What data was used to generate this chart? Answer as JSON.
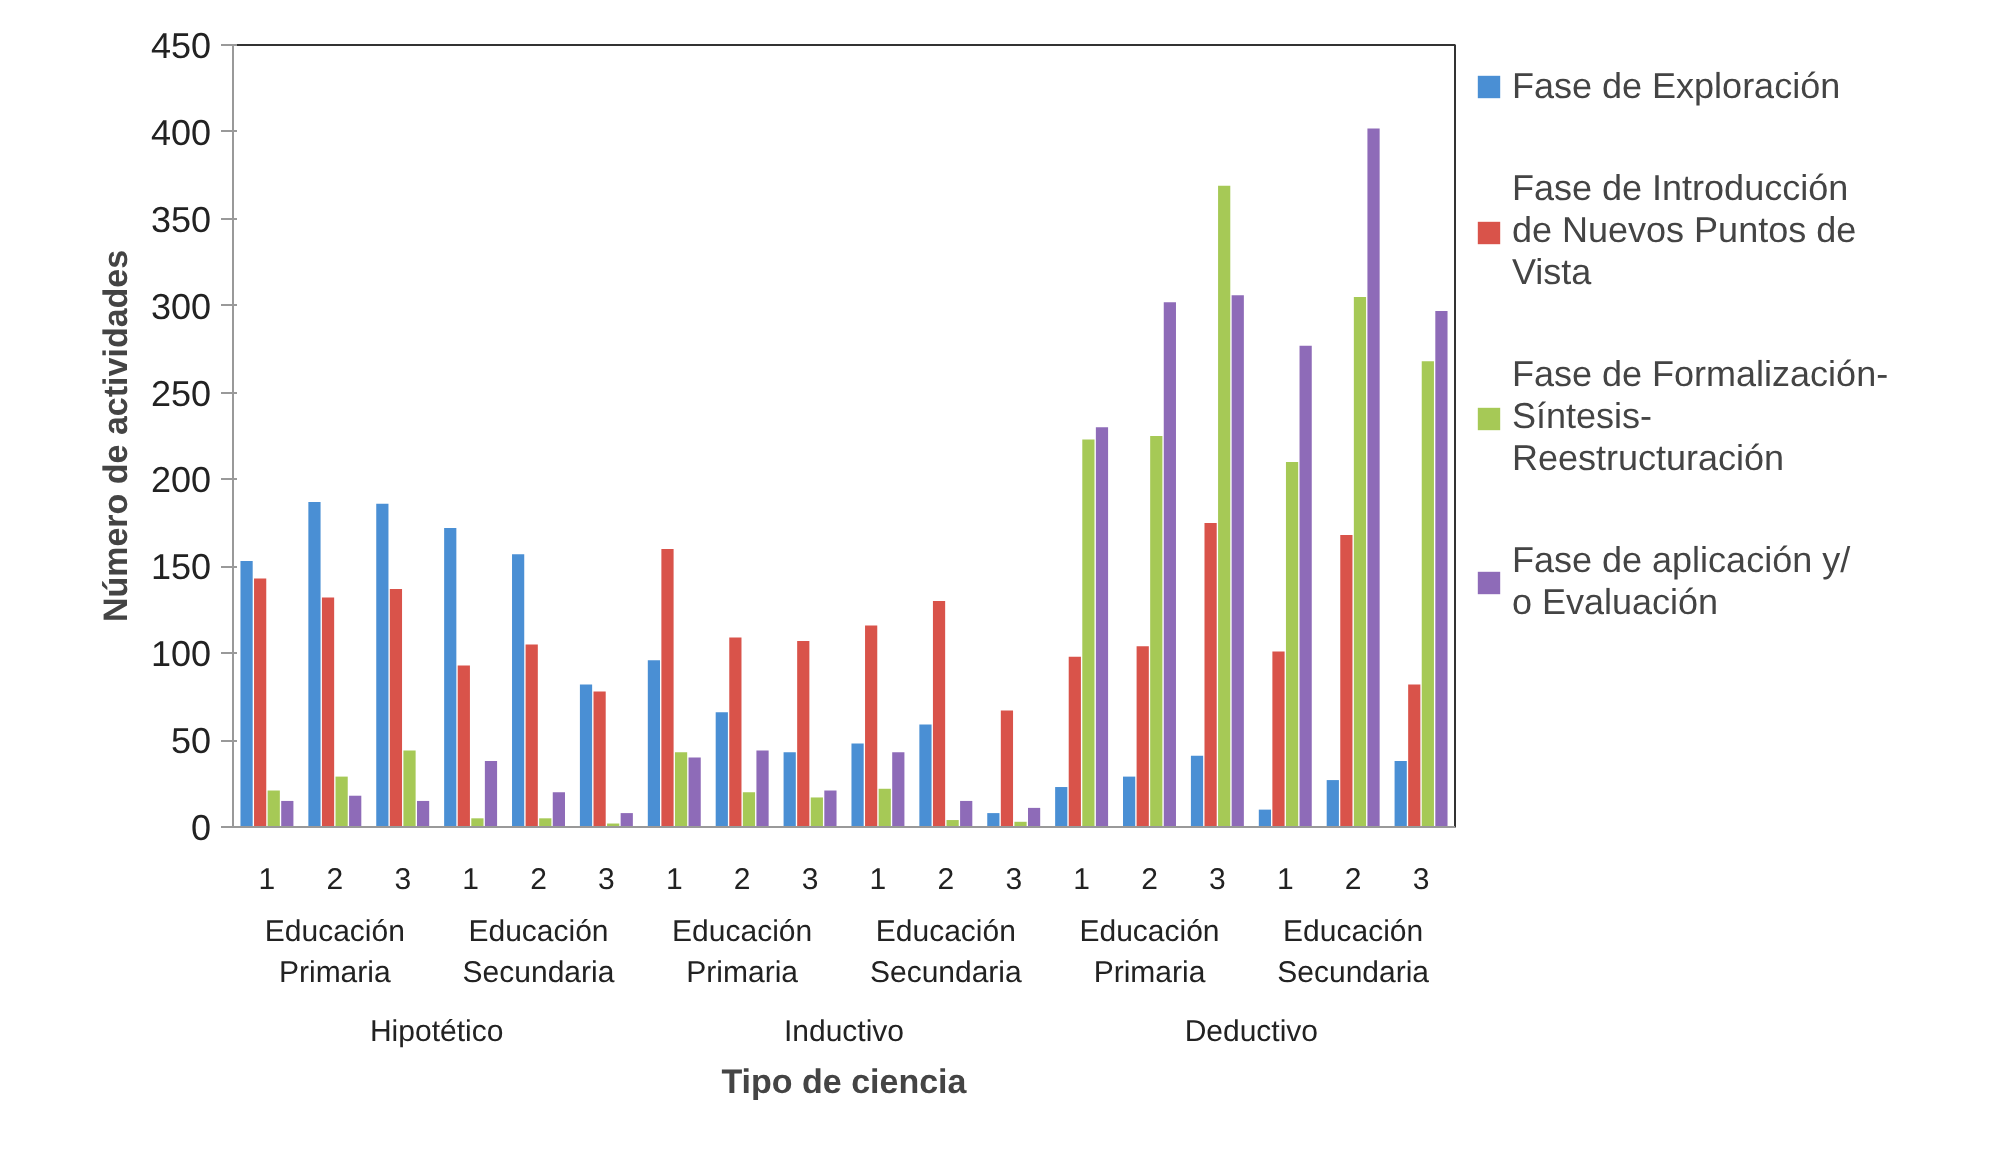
{
  "chart_data": {
    "type": "bar",
    "xlabel": "Tipo de ciencia",
    "ylabel": "Número de actividades",
    "categories": [
      "1",
      "2",
      "3",
      "1",
      "2",
      "3",
      "1",
      "2",
      "3",
      "1",
      "2",
      "3",
      "1",
      "2",
      "3",
      "1",
      "2",
      "3"
    ],
    "annotations": [
      "Educación Primaria",
      "Educación Secundaria",
      "Educación Primaria",
      "Educación Secundaria",
      "Educación Primaria",
      "Educación Secundaria",
      "Hipotético",
      "Inductivo",
      "Deductivo"
    ],
    "series": [
      {
        "name": "Fase de Exploración",
        "color": "#4a8fd4",
        "values": [
          153,
          187,
          186,
          172,
          157,
          82,
          96,
          66,
          43,
          48,
          59,
          8,
          23,
          29,
          41,
          10,
          27,
          38
        ]
      },
      {
        "name": "Fase de Introducción de Nuevos Puntos de Vista",
        "color": "#d9534a",
        "values": [
          143,
          132,
          137,
          93,
          105,
          78,
          160,
          109,
          107,
          116,
          130,
          67,
          98,
          104,
          175,
          101,
          168,
          82
        ]
      },
      {
        "name": "Fase de Formalización-Síntesis-Reestructuración",
        "color": "#a6c956",
        "values": [
          21,
          29,
          44,
          5,
          5,
          2,
          43,
          20,
          17,
          22,
          4,
          3,
          223,
          225,
          369,
          210,
          305,
          268
        ]
      },
      {
        "name": "Fase de aplicación y/ o Evaluación",
        "color": "#8e6bb8",
        "values": [
          15,
          18,
          15,
          38,
          20,
          8,
          40,
          44,
          21,
          43,
          15,
          11,
          230,
          302,
          306,
          277,
          402,
          297
        ]
      }
    ],
    "ylim": [
      0,
      450
    ],
    "yticks": [
      0,
      50,
      100,
      150,
      200,
      250,
      300,
      350,
      400,
      450
    ],
    "grid": false,
    "legend": "right"
  }
}
